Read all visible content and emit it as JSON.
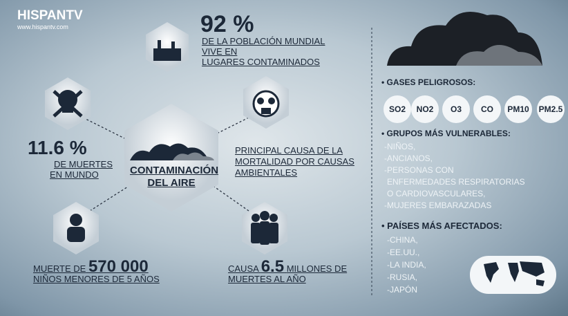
{
  "logo": {
    "brand": "HISPANTV",
    "url": "www.hispantv.com"
  },
  "stat_top": {
    "value": "92 %",
    "lines": [
      "DE LA POBLACIÓN MUNDIAL",
      "VIVE EN",
      "LUGARES CONTAMINADOS"
    ]
  },
  "center": {
    "lines": [
      "CONTAMINACIÓN",
      "DEL AIRE"
    ]
  },
  "left_stat": {
    "value": "11.6 %",
    "lines": [
      "DE MUERTES",
      "EN MUNDO"
    ]
  },
  "right_cause": {
    "lines": [
      "PRINCIPAL CAUSA DE LA",
      "MORTALIDAD POR CAUSAS",
      "AMBIENTALES"
    ]
  },
  "children": {
    "prefix": "MUERTE DE",
    "value": "570 000",
    "line2": "NIÑOS MENORES DE 5 AÑOS"
  },
  "deaths": {
    "prefix": "CAUSA",
    "value": "6.5",
    "suffix": "MILLONES DE",
    "line2": "MUERTES AL AÑO"
  },
  "gases": {
    "heading": "GASES PELIGROSOS:",
    "items": [
      "SO2",
      "NO2",
      "O3",
      "CO",
      "PM10",
      "PM2.5"
    ]
  },
  "groups": {
    "heading": "GRUPOS MÁS VULNERABLES:",
    "items": [
      "-NIÑOS,",
      "-ANCIANOS,",
      "-PERSONAS CON",
      "ENFERMEDADES RESPIRATORIAS",
      "O CARDIOVASCULARES,",
      "-MUJERES EMBARAZADAS"
    ]
  },
  "countries": {
    "heading": "PAÍSES MÁS AFECTADOS:",
    "items": [
      "-CHINA,",
      "-EE.UU.,",
      "-LA INDIA,",
      "-RUSIA,",
      "-JAPÓN"
    ]
  }
}
